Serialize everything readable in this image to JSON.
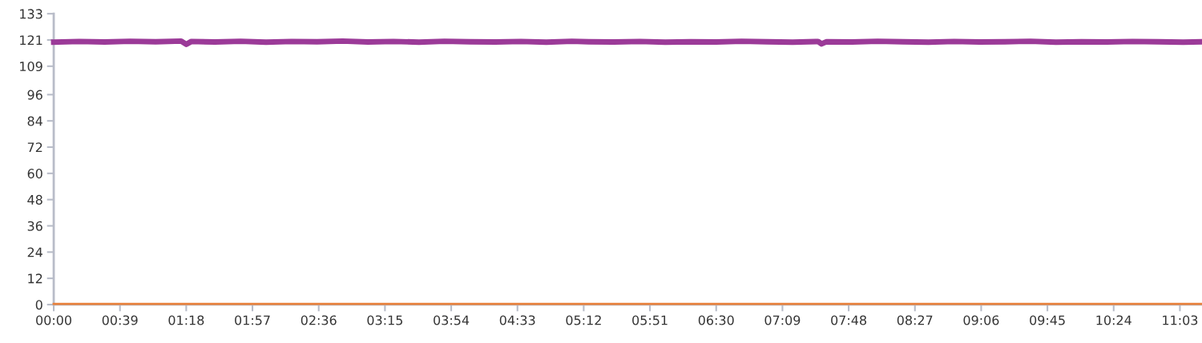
{
  "chart_data": {
    "type": "line",
    "xlim": [
      0,
      676
    ],
    "ylim": [
      0,
      133
    ],
    "xticks": [
      {
        "value": 0,
        "label": "00:00"
      },
      {
        "value": 39,
        "label": "00:39"
      },
      {
        "value": 78,
        "label": "01:18"
      },
      {
        "value": 117,
        "label": "01:57"
      },
      {
        "value": 156,
        "label": "02:36"
      },
      {
        "value": 195,
        "label": "03:15"
      },
      {
        "value": 234,
        "label": "03:54"
      },
      {
        "value": 273,
        "label": "04:33"
      },
      {
        "value": 312,
        "label": "05:12"
      },
      {
        "value": 351,
        "label": "05:51"
      },
      {
        "value": 390,
        "label": "06:30"
      },
      {
        "value": 429,
        "label": "07:09"
      },
      {
        "value": 468,
        "label": "07:48"
      },
      {
        "value": 507,
        "label": "08:27"
      },
      {
        "value": 546,
        "label": "09:06"
      },
      {
        "value": 585,
        "label": "09:45"
      },
      {
        "value": 624,
        "label": "10:24"
      },
      {
        "value": 663,
        "label": "11:03"
      }
    ],
    "yticks": [
      0,
      12,
      24,
      36,
      48,
      60,
      72,
      84,
      96,
      109,
      121,
      133
    ],
    "grid": false,
    "marker": "none",
    "line_style": "solid",
    "series": [
      {
        "color": "#9b3a98",
        "x": [
          0,
          15,
          30,
          45,
          60,
          75,
          78,
          81,
          95,
          110,
          125,
          140,
          155,
          170,
          185,
          200,
          215,
          230,
          245,
          260,
          275,
          290,
          305,
          315,
          330,
          345,
          360,
          375,
          390,
          405,
          420,
          435,
          450,
          452,
          455,
          470,
          485,
          500,
          515,
          530,
          545,
          560,
          575,
          590,
          605,
          620,
          635,
          650,
          665,
          676
        ],
        "values": [
          120,
          120.3,
          120.1,
          120.4,
          120.2,
          120.5,
          119,
          120.3,
          120.1,
          120.4,
          120,
          120.3,
          120.2,
          120.5,
          120.1,
          120.3,
          120,
          120.4,
          120.2,
          120.1,
          120.3,
          120,
          120.4,
          120.2,
          120.1,
          120.3,
          120,
          120.2,
          120.1,
          120.4,
          120.2,
          120,
          120.3,
          119.2,
          120.2,
          120.1,
          120.4,
          120.2,
          120,
          120.3,
          120.1,
          120.2,
          120.4,
          120,
          120.2,
          120.1,
          120.3,
          120.2,
          120,
          120.2
        ]
      },
      {
        "color": "#e8803a",
        "x": [
          0,
          100,
          200,
          300,
          400,
          500,
          600,
          676
        ],
        "values": [
          0.3,
          0.3,
          0.3,
          0.3,
          0.3,
          0.3,
          0.3,
          0.3
        ]
      }
    ]
  }
}
